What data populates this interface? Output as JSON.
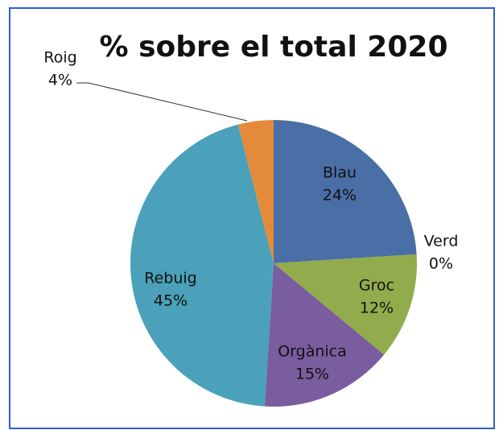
{
  "chart_data": {
    "type": "pie",
    "title": "% sobre el total 2020",
    "categories": [
      "Blau",
      "Verd",
      "Groc",
      "Orgànica",
      "Rebuig",
      "Roig"
    ],
    "values": [
      24,
      0,
      12,
      15,
      45,
      4
    ],
    "value_labels": [
      "24%",
      "0%",
      "12%",
      "15%",
      "45%",
      "4%"
    ],
    "colors": [
      "#4a6fa6",
      "#3f9a4a",
      "#92ab4c",
      "#7a5d9e",
      "#4aa1b9",
      "#e38b3a"
    ]
  }
}
